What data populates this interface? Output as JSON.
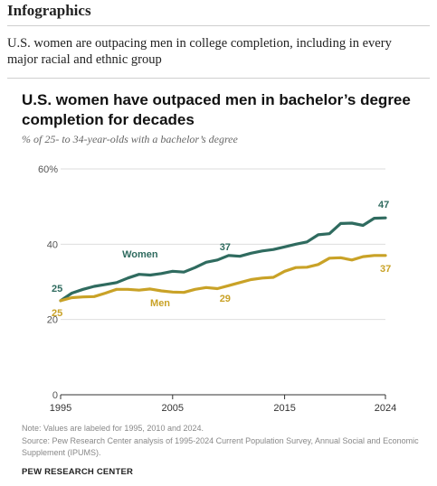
{
  "page": {
    "section_title": "Infographics",
    "lede": "U.S. women are outpacing men in college completion, including in every major racial and ethnic group"
  },
  "chart_data": {
    "type": "line",
    "title": "U.S. women have outpaced men in bachelor’s degree completion for decades",
    "subtitle": "% of 25- to 34-year-olds with a bachelor’s degree",
    "xlabel": "",
    "ylabel": "",
    "ylim": [
      0,
      60
    ],
    "xlim": [
      1995,
      2024
    ],
    "y_ticks": [
      0,
      20,
      40,
      60
    ],
    "y_tick_labels": [
      "0",
      "20",
      "40",
      "60%"
    ],
    "x_ticks": [
      1995,
      2005,
      2015,
      2024
    ],
    "x_tick_labels": [
      "1995",
      "2005",
      "2015",
      "2024"
    ],
    "grid": true,
    "colors": {
      "Women": "#2f6b5f",
      "Men": "#c9a227",
      "grid": "#dedede",
      "axis": "#333333"
    },
    "x": [
      1995,
      1996,
      1997,
      1998,
      1999,
      2000,
      2001,
      2002,
      2003,
      2004,
      2005,
      2006,
      2007,
      2008,
      2009,
      2010,
      2011,
      2012,
      2013,
      2014,
      2015,
      2016,
      2017,
      2018,
      2019,
      2020,
      2021,
      2022,
      2023,
      2024
    ],
    "series": [
      {
        "name": "Women",
        "values": [
          25,
          27,
          28,
          28.8,
          29.3,
          29.8,
          31,
          32,
          31.8,
          32.2,
          32.8,
          32.6,
          33.8,
          35.2,
          35.8,
          37,
          36.8,
          37.6,
          38.2,
          38.6,
          39.3,
          40,
          40.6,
          42.5,
          42.8,
          45.5,
          45.6,
          45,
          46.9,
          47
        ],
        "label_text": "Women"
      },
      {
        "name": "Men",
        "values": [
          25,
          25.8,
          26,
          26.1,
          27,
          28,
          28,
          27.8,
          28.1,
          27.6,
          27.3,
          27.2,
          28,
          28.5,
          28.2,
          29,
          29.8,
          30.6,
          31,
          31.2,
          32.8,
          33.8,
          33.9,
          34.6,
          36.3,
          36.4,
          35.8,
          36.7,
          37,
          37
        ],
        "label_text": "Men"
      }
    ],
    "value_labels": [
      {
        "series": "Women",
        "year": 1995,
        "text": "25"
      },
      {
        "series": "Women",
        "year": 2010,
        "text": "37"
      },
      {
        "series": "Women",
        "year": 2024,
        "text": "47"
      },
      {
        "series": "Men",
        "year": 1995,
        "text": "25"
      },
      {
        "series": "Men",
        "year": 2010,
        "text": "29"
      },
      {
        "series": "Men",
        "year": 2024,
        "text": "37"
      }
    ]
  },
  "footer": {
    "note": "Note: Values are labeled for 1995, 2010 and 2024.",
    "source": "Source: Pew Research Center analysis of 1995-2024 Current Population Survey, Annual Social and Economic Supplement (IPUMS).",
    "brand": "PEW RESEARCH CENTER"
  }
}
